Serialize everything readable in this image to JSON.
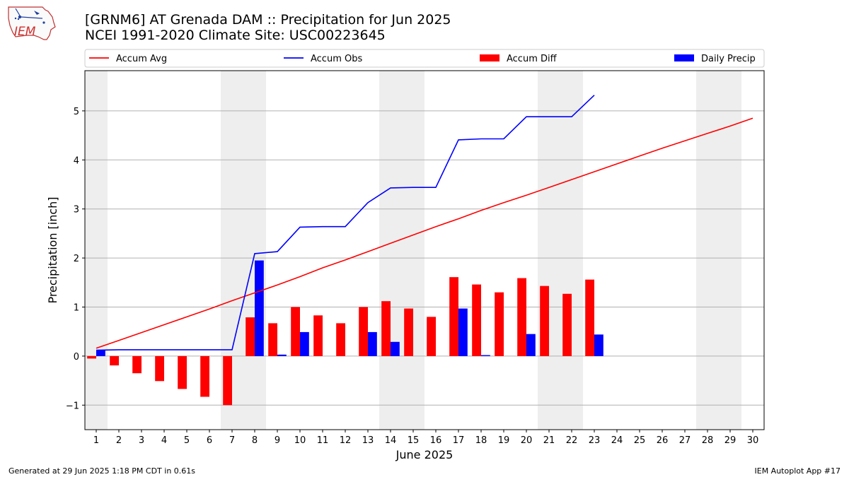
{
  "header": {
    "title_line1": "[GRNM6] AT Grenada DAM :: Precipitation for Jun 2025",
    "title_line2": "NCEI 1991-2020 Climate Site: USC00223645",
    "logo_text": "IEM"
  },
  "footer": {
    "generated": "Generated at 29 Jun 2025 1:18 PM CDT in 0.61s",
    "app": "IEM Autoplot App #17"
  },
  "colors": {
    "accum_avg": "#ff0000",
    "accum_obs": "#0000ff",
    "accum_diff": "#ff0000",
    "daily_precip": "#0000ff",
    "weekend_shade": "#eeeeee",
    "grid": "#b0b0b0"
  },
  "chart_data": {
    "type": "bar",
    "xlabel": "June 2025",
    "ylabel": "Precipitation [inch]",
    "xlim": [
      0.5,
      30.5
    ],
    "ylim": [
      -1.5,
      5.82
    ],
    "yticks": [
      -1,
      0,
      1,
      2,
      3,
      4,
      5
    ],
    "ytick_labels": [
      "−1",
      "0",
      "1",
      "2",
      "3",
      "4",
      "5"
    ],
    "days": [
      1,
      2,
      3,
      4,
      5,
      6,
      7,
      8,
      9,
      10,
      11,
      12,
      13,
      14,
      15,
      16,
      17,
      18,
      19,
      20,
      21,
      22,
      23,
      24,
      25,
      26,
      27,
      28,
      29,
      30
    ],
    "grid": "horizontal",
    "legend": {
      "placement": "top",
      "entries": [
        "Accum Avg",
        "Accum Obs",
        "Accum Diff",
        "Daily Precip"
      ]
    },
    "weekend_spans": [
      [
        1,
        1
      ],
      [
        7,
        8
      ],
      [
        14,
        15
      ],
      [
        21,
        22
      ],
      [
        28,
        29
      ]
    ],
    "series": [
      {
        "name": "Accum Avg",
        "kind": "line",
        "x": [
          1,
          2,
          3,
          4,
          5,
          6,
          7,
          8,
          9,
          10,
          11,
          12,
          13,
          14,
          15,
          16,
          17,
          18,
          19,
          20,
          21,
          22,
          23,
          24,
          25,
          26,
          27,
          28,
          29,
          30
        ],
        "values": [
          0.16,
          0.32,
          0.48,
          0.64,
          0.8,
          0.96,
          1.13,
          1.29,
          1.45,
          1.62,
          1.8,
          1.96,
          2.13,
          2.3,
          2.47,
          2.64,
          2.8,
          2.97,
          3.13,
          3.28,
          3.44,
          3.6,
          3.76,
          3.92,
          4.08,
          4.24,
          4.39,
          4.54,
          4.69,
          4.85
        ]
      },
      {
        "name": "Accum Obs",
        "kind": "line",
        "x": [
          1,
          2,
          3,
          4,
          5,
          6,
          7,
          8,
          9,
          10,
          11,
          12,
          13,
          14,
          15,
          16,
          17,
          18,
          19,
          20,
          21,
          22,
          23
        ],
        "values": [
          0.12,
          0.13,
          0.13,
          0.13,
          0.13,
          0.13,
          0.13,
          2.09,
          2.13,
          2.63,
          2.64,
          2.64,
          3.13,
          3.43,
          3.44,
          3.44,
          4.41,
          4.43,
          4.43,
          4.88,
          4.88,
          4.88,
          5.32
        ]
      },
      {
        "name": "Accum Diff",
        "kind": "bar",
        "x": [
          1,
          2,
          3,
          4,
          5,
          6,
          7,
          8,
          9,
          10,
          11,
          12,
          13,
          14,
          15,
          16,
          17,
          18,
          19,
          20,
          21,
          22,
          23
        ],
        "values": [
          -0.05,
          -0.19,
          -0.35,
          -0.51,
          -0.67,
          -0.83,
          -1.0,
          0.79,
          0.67,
          1.0,
          0.83,
          0.67,
          1.0,
          1.12,
          0.97,
          0.8,
          1.61,
          1.46,
          1.3,
          1.59,
          1.43,
          1.27,
          1.56
        ]
      },
      {
        "name": "Daily Precip",
        "kind": "bar",
        "x": [
          1,
          2,
          3,
          4,
          5,
          6,
          7,
          8,
          9,
          10,
          11,
          12,
          13,
          14,
          15,
          16,
          17,
          18,
          19,
          20,
          21,
          22,
          23
        ],
        "values": [
          0.12,
          0,
          0,
          0,
          0,
          0,
          0,
          1.95,
          0.03,
          0.49,
          0,
          0,
          0.49,
          0.29,
          0,
          0,
          0.97,
          0.02,
          0,
          0.45,
          0,
          0,
          0.44
        ]
      }
    ]
  }
}
